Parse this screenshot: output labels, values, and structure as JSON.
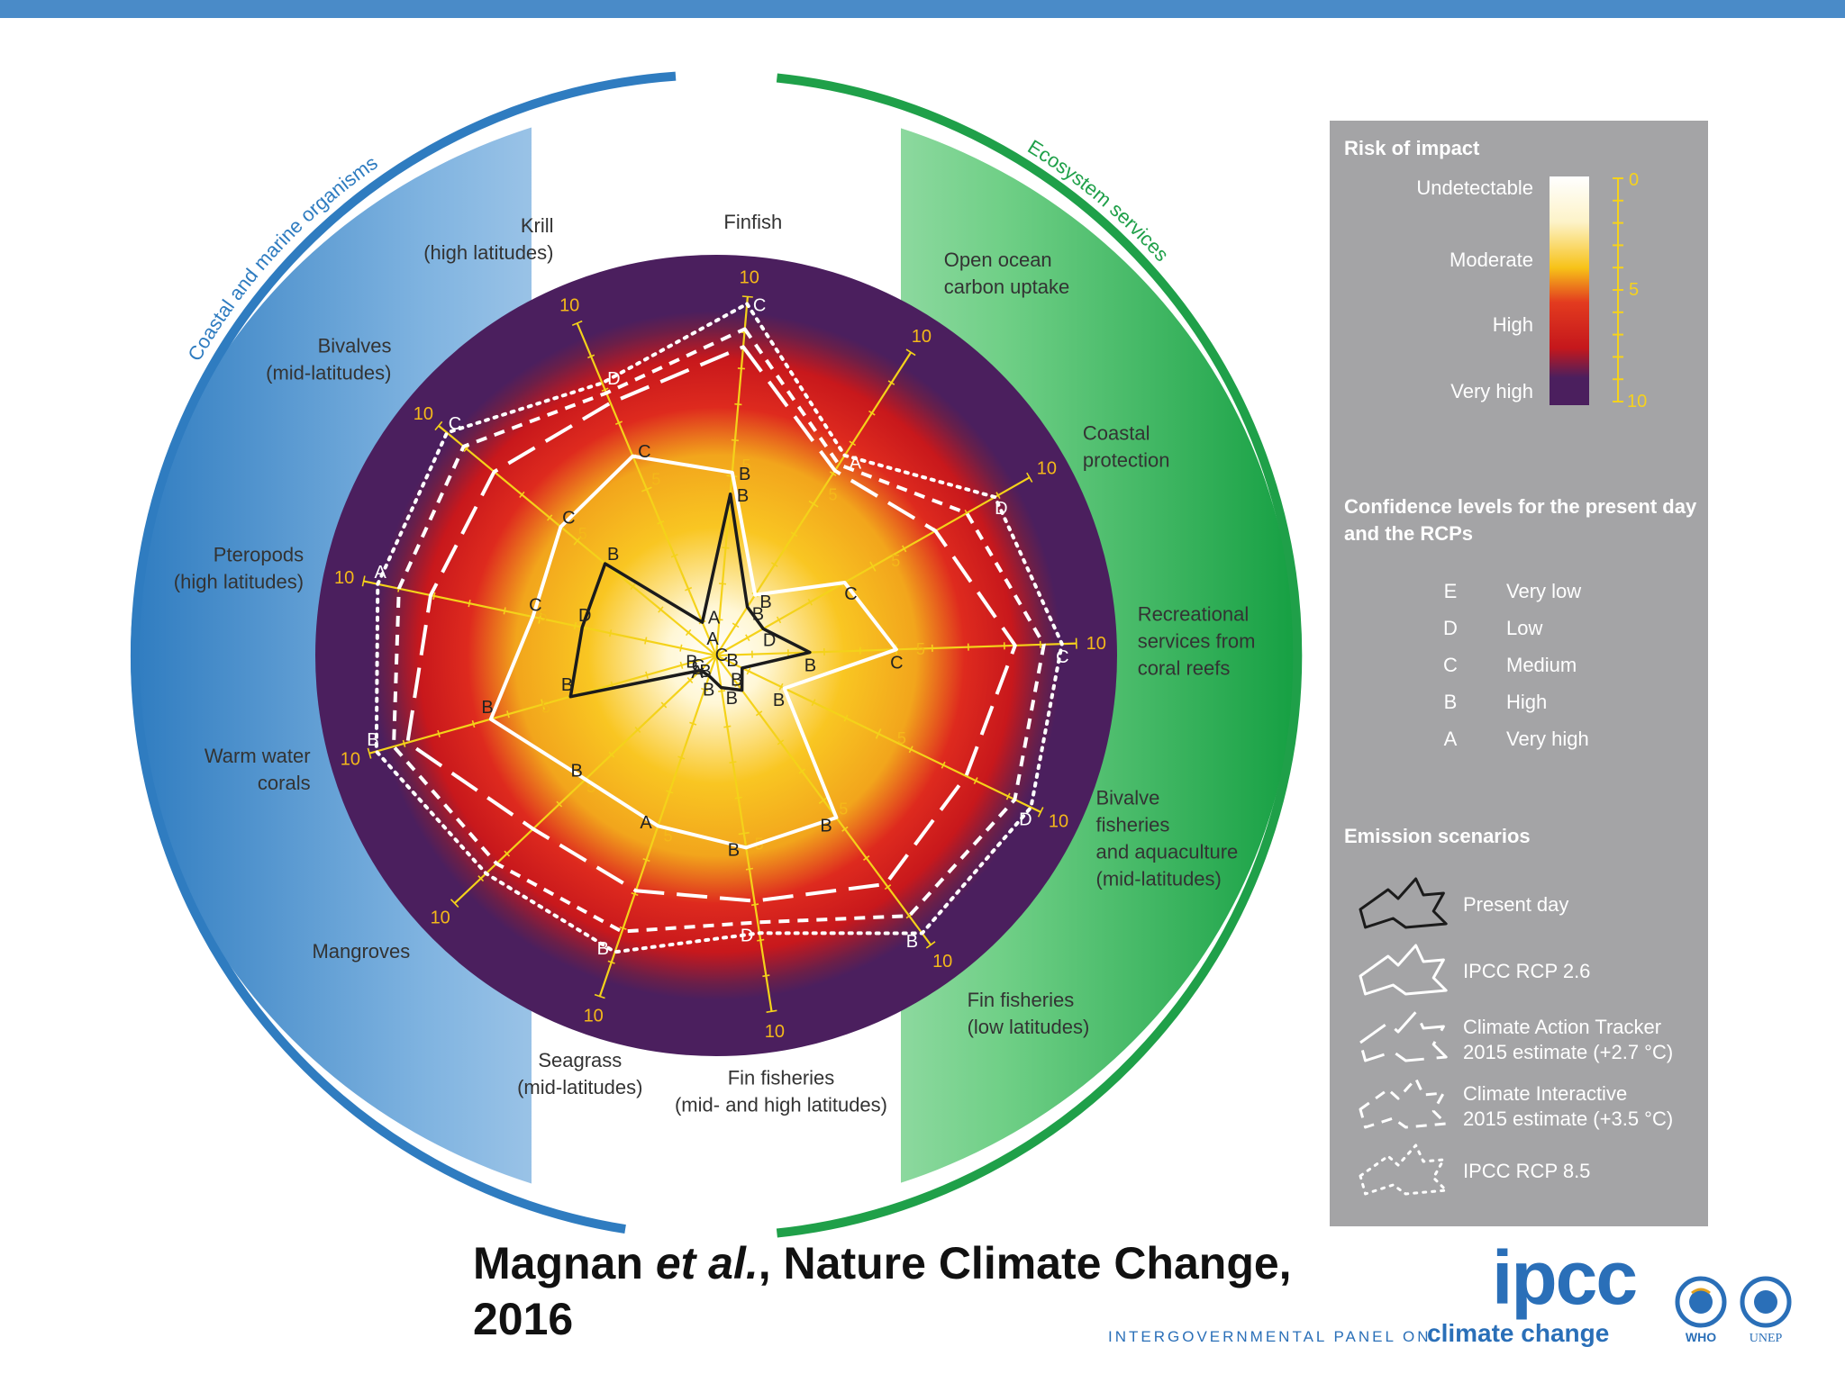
{
  "header_bar_color": "#4a8bc8",
  "chart_data": {
    "type": "radar",
    "scale": [
      0,
      10
    ],
    "group_labels": [
      "Coastal and marine organisms",
      "Ecosystem services"
    ],
    "group_colors": {
      "organisms": "#2f7cc0",
      "services": "#1fa049"
    },
    "axes": [
      {
        "label": [
          "Finfish"
        ],
        "max_label": "10"
      },
      {
        "label": [
          "Open ocean",
          "carbon uptake"
        ],
        "max_label": "10"
      },
      {
        "label": [
          "Coastal",
          "protection"
        ],
        "max_label": "10"
      },
      {
        "label": [
          "Recreational",
          "services from",
          "coral reefs"
        ],
        "max_label": "10"
      },
      {
        "label": [
          "Bivalve",
          "fisheries",
          "and aquaculture",
          "(mid-latitudes)"
        ],
        "max_label": "10"
      },
      {
        "label": [
          "Fin fisheries",
          "(low latitudes)"
        ],
        "max_label": "10"
      },
      {
        "label": [
          "Fin fisheries",
          "(mid- and high latitudes)"
        ],
        "max_label": "10"
      },
      {
        "label": [
          "Seagrass",
          "(mid-latitudes)"
        ],
        "max_label": "10"
      },
      {
        "label": [
          "Mangroves"
        ],
        "max_label": "10"
      },
      {
        "label": [
          "Warm water",
          "corals"
        ],
        "max_label": "10"
      },
      {
        "label": [
          "Pteropods",
          "(high latitudes)"
        ],
        "max_label": "10"
      },
      {
        "label": [
          "Bivalves",
          "(mid-latitudes)"
        ],
        "max_label": "10"
      },
      {
        "label": [
          "Krill",
          "(high latitudes)"
        ],
        "max_label": "10"
      }
    ],
    "series": [
      {
        "name": "Present day",
        "style": "solid-dark",
        "values": [
          4.5,
          1.6,
          1.5,
          2.6,
          0.8,
          1.2,
          0.9,
          0.6,
          0.6,
          4.2,
          3.8,
          4.0,
          1.0
        ],
        "confidence": [
          "B",
          "B",
          "D",
          "B",
          "B",
          "B",
          "B",
          "A",
          "B",
          "B",
          "D",
          "B",
          "A"
        ]
      },
      {
        "name": "IPCC RCP 2.6",
        "style": "solid-white",
        "values": [
          5.1,
          2.0,
          4.1,
          5.0,
          2.1,
          5.6,
          5.4,
          5.0,
          5.0,
          6.5,
          5.2,
          5.6,
          6.0
        ],
        "confidence": [
          "B",
          "B",
          "C",
          "C",
          "B",
          "B",
          "B",
          "A",
          "B",
          "B",
          "C",
          "C",
          "C"
        ]
      },
      {
        "name": "Climate Action Tracker 2015 estimate (+2.7 °C)",
        "style": "long-dash",
        "values": [
          8.6,
          6.1,
          7.0,
          8.3,
          7.7,
          7.9,
          6.9,
          6.9,
          7.0,
          8.9,
          8.1,
          8.0,
          7.6
        ],
        "confidence": [
          "",
          "",
          "",
          "",
          "",
          "",
          "",
          "",
          "",
          "",
          "",
          "",
          ""
        ]
      },
      {
        "name": "Climate Interactive 2015 estimate (+3.5 °C)",
        "style": "short-dash",
        "values": [
          9.1,
          6.3,
          8.0,
          9.1,
          9.2,
          9.0,
          7.5,
          8.1,
          8.4,
          9.3,
          9.0,
          9.1,
          7.9
        ],
        "confidence": [
          "",
          "",
          "",
          "",
          "",
          "",
          "",
          "",
          "",
          "",
          "",
          "",
          ""
        ]
      },
      {
        "name": "IPCC RCP 8.5",
        "style": "dotted",
        "values": [
          9.8,
          6.6,
          8.9,
          9.6,
          9.7,
          9.6,
          7.8,
          8.7,
          8.8,
          9.8,
          9.6,
          9.7,
          8.2
        ],
        "confidence": [
          "C",
          "A",
          "D",
          "C",
          "D",
          "B",
          "D",
          "B",
          "",
          "B",
          "A",
          "C",
          "D"
        ]
      }
    ],
    "extra_axis_letters": [
      "A",
      "B",
      "C",
      "C",
      "B"
    ]
  },
  "legend": {
    "risk_title": "Risk of impact",
    "risk_levels": [
      "Undetectable",
      "Moderate",
      "High",
      "Very high"
    ],
    "scale_ticks": [
      "0",
      "5",
      "10"
    ],
    "confidence_title": [
      "Confidence levels for the present day",
      "and the RCPs"
    ],
    "confidence_levels": [
      {
        "letter": "E",
        "label": "Very low"
      },
      {
        "letter": "D",
        "label": "Low"
      },
      {
        "letter": "C",
        "label": "Medium"
      },
      {
        "letter": "B",
        "label": "High"
      },
      {
        "letter": "A",
        "label": "Very high"
      }
    ],
    "scenarios_title": "Emission scenarios",
    "scenarios": [
      {
        "lines": [
          "Present day"
        ]
      },
      {
        "lines": [
          "IPCC RCP 2.6"
        ]
      },
      {
        "lines": [
          "Climate Action Tracker",
          "2015 estimate (+2.7 °C)"
        ]
      },
      {
        "lines": [
          "Climate Interactive",
          "2015 estimate (+3.5 °C)"
        ]
      },
      {
        "lines": [
          "IPCC RCP 8.5"
        ]
      }
    ]
  },
  "citation": {
    "author": "Magnan",
    "etal": "et al.",
    "journal": ", Nature Climate Change,",
    "year": "2016"
  },
  "logos": {
    "ipcc": "ipcc",
    "ipcc_subtitle": "INTERGOVERNMENTAL PANEL ON",
    "ipcc_subtitle2": "climate change",
    "who": "WHO",
    "unep": "UNEP"
  }
}
